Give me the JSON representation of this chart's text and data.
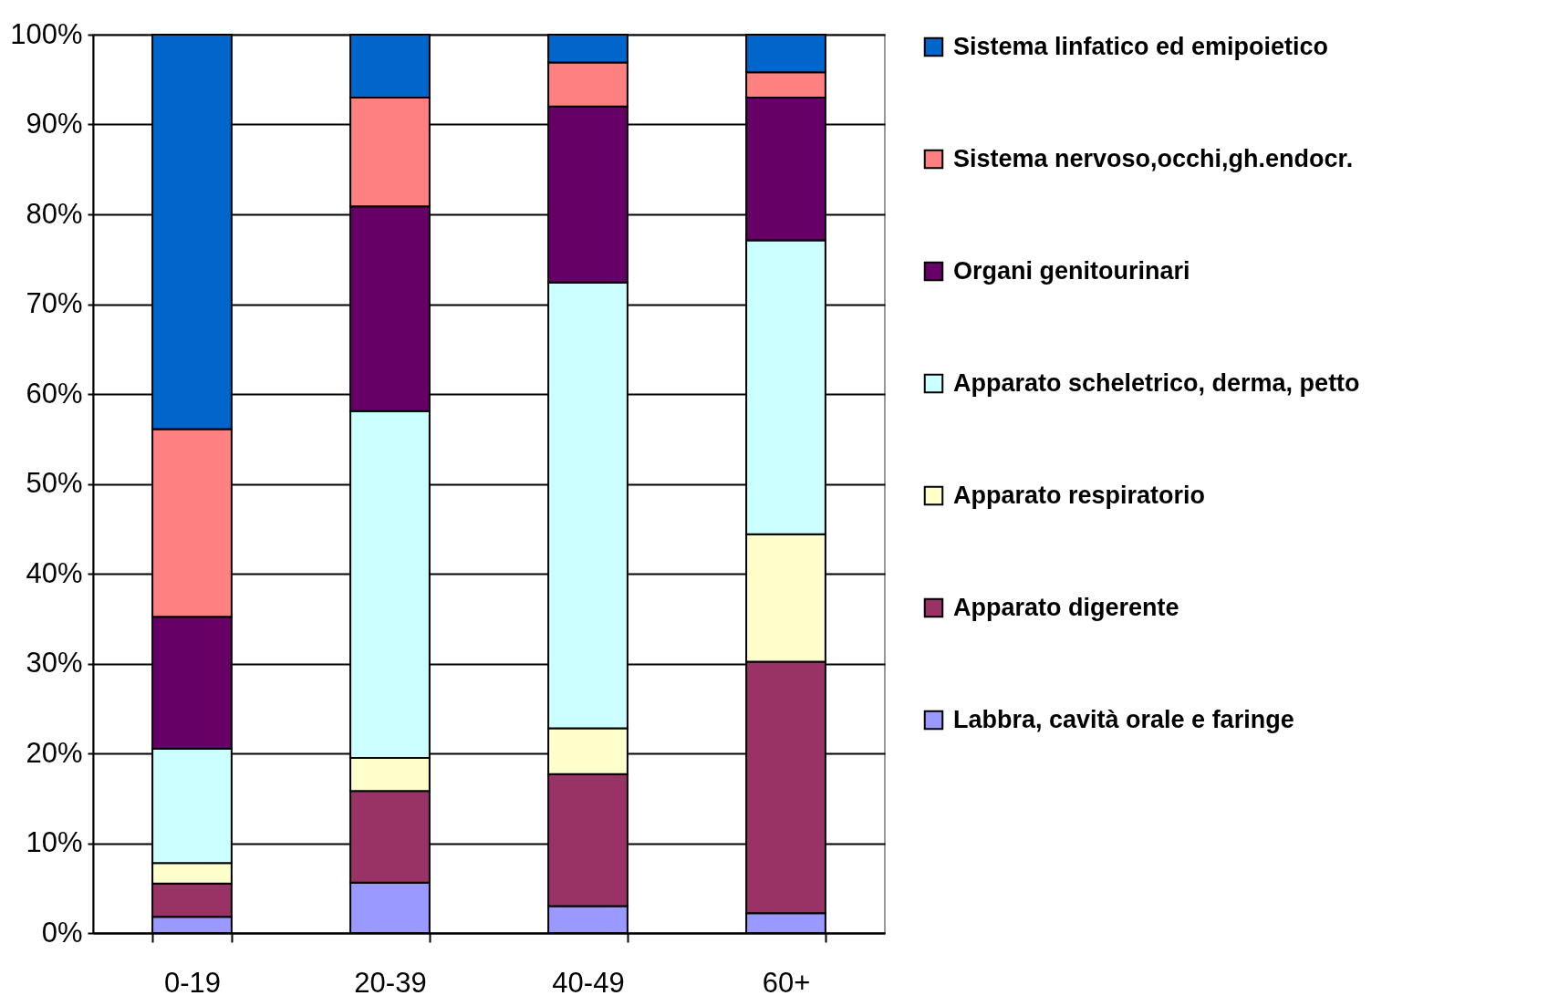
{
  "chart_data": {
    "type": "bar",
    "stacked": true,
    "categories": [
      "0-19",
      "20-39",
      "40-49",
      "60+"
    ],
    "ylim": [
      0,
      100
    ],
    "yticks": [
      {
        "value": 0,
        "label": "0%"
      },
      {
        "value": 10,
        "label": "10%"
      },
      {
        "value": 20,
        "label": "20%"
      },
      {
        "value": 30,
        "label": "30%"
      },
      {
        "value": 40,
        "label": "40%"
      },
      {
        "value": 50,
        "label": "50%"
      },
      {
        "value": 60,
        "label": "60%"
      },
      {
        "value": 70,
        "label": "70%"
      },
      {
        "value": 80,
        "label": "80%"
      },
      {
        "value": 90,
        "label": "90%"
      },
      {
        "value": 100,
        "label": "100%"
      }
    ],
    "grid": "y",
    "legend": "right",
    "series": [
      {
        "name": "Labbra, cavità orale e faringe",
        "color": "#9999ff",
        "values": [
          1.8,
          5.6,
          3.0,
          2.2
        ]
      },
      {
        "name": "Apparato digerente",
        "color": "#993366",
        "values": [
          3.7,
          10.2,
          14.7,
          28.0
        ]
      },
      {
        "name": "Apparato respiratorio",
        "color": "#ffffcc",
        "values": [
          2.3,
          3.7,
          5.1,
          14.2
        ]
      },
      {
        "name": "Apparato scheletrico, derma, petto",
        "color": "#ccffff",
        "values": [
          12.7,
          38.6,
          49.6,
          32.7
        ]
      },
      {
        "name": "Organi genitourinari",
        "color": "#660066",
        "values": [
          14.7,
          22.8,
          19.6,
          15.9
        ]
      },
      {
        "name": "Sistema nervoso,occhi,gh.endocr.",
        "color": "#ff8080",
        "values": [
          20.9,
          12.1,
          4.9,
          2.8
        ]
      },
      {
        "name": "Sistema linfatico ed emipoietico",
        "color": "#0066cc",
        "values": [
          43.9,
          7.0,
          3.1,
          4.2
        ]
      }
    ]
  }
}
